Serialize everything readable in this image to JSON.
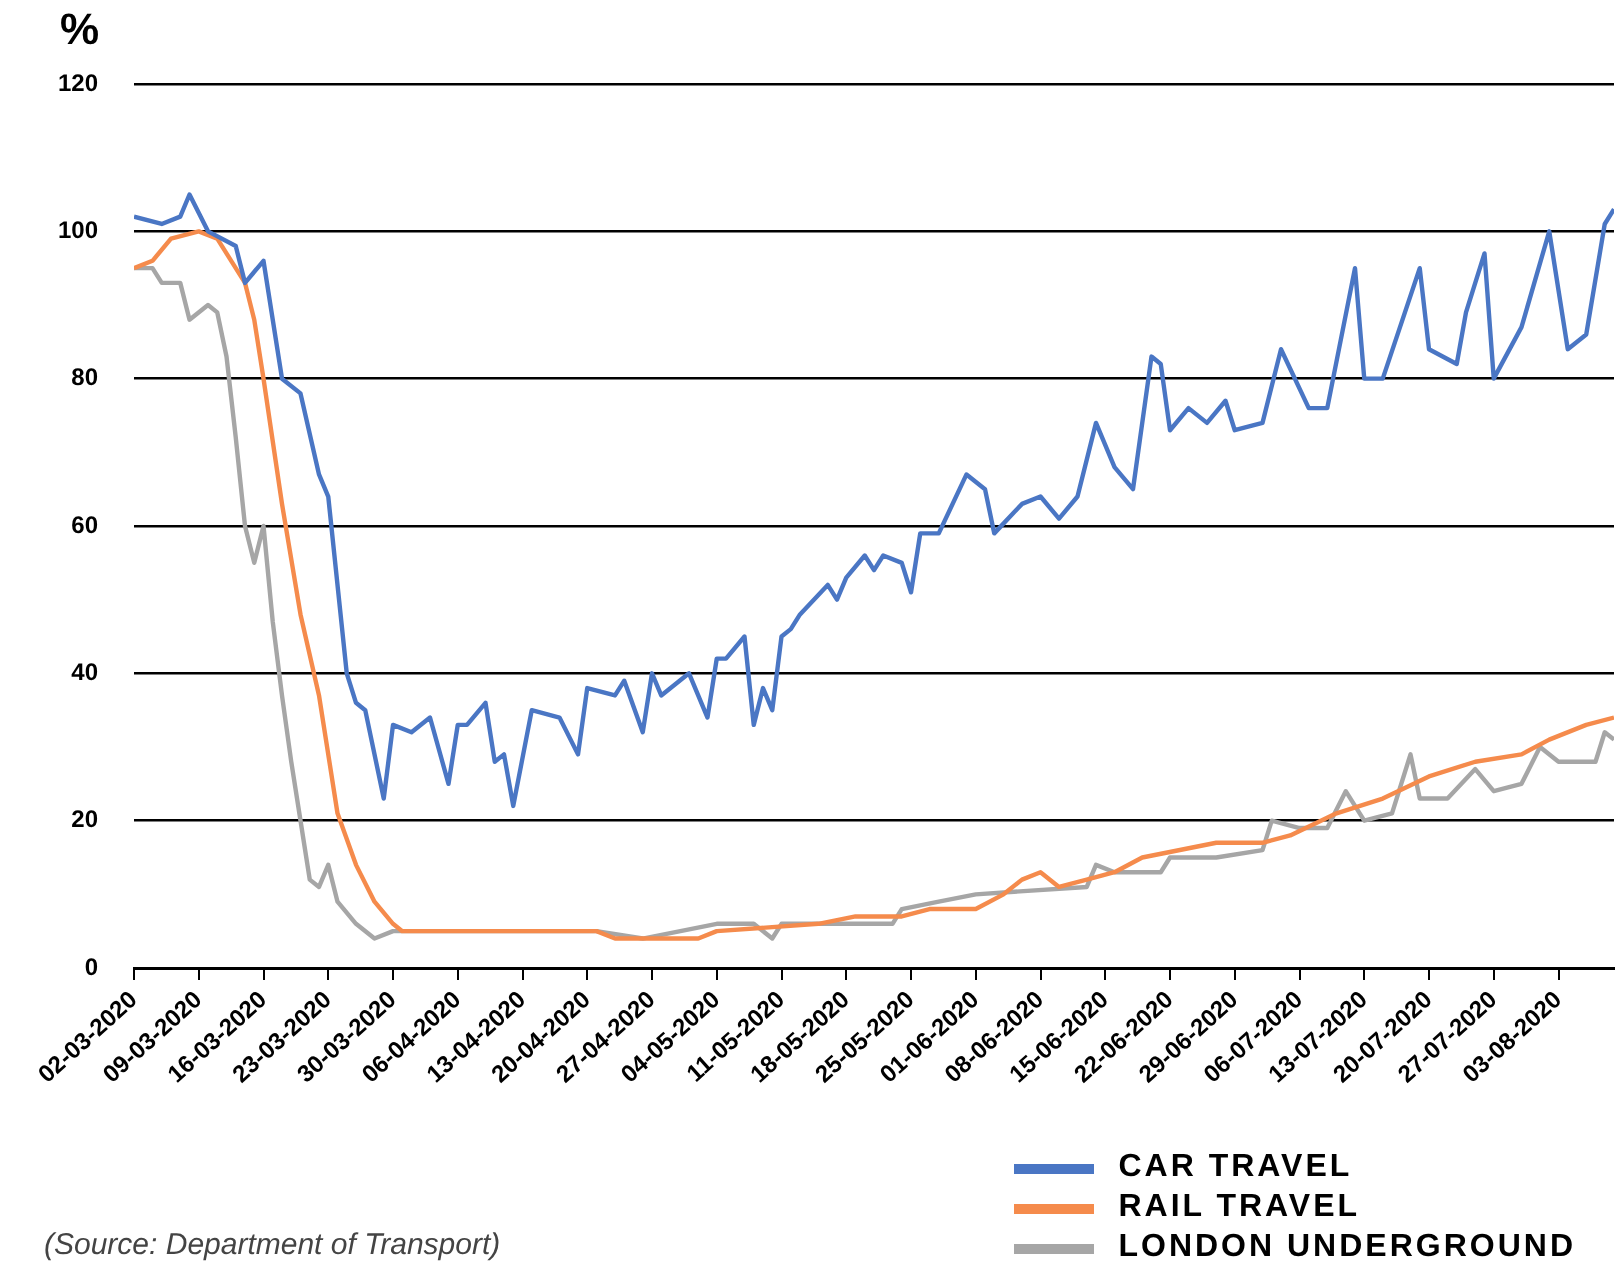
{
  "chart_data": {
    "type": "line",
    "ylabel": "%",
    "xlim": [
      "2020-03-02",
      "2020-08-09"
    ],
    "xticks": [
      {
        "value": "2020-03-02",
        "label": "02-03-2020"
      },
      {
        "value": "2020-03-09",
        "label": "09-03-2020"
      },
      {
        "value": "2020-03-16",
        "label": "16-03-2020"
      },
      {
        "value": "2020-03-23",
        "label": "23-03-2020"
      },
      {
        "value": "2020-03-30",
        "label": "30-03-2020"
      },
      {
        "value": "2020-04-06",
        "label": "06-04-2020"
      },
      {
        "value": "2020-04-13",
        "label": "13-04-2020"
      },
      {
        "value": "2020-04-20",
        "label": "20-04-2020"
      },
      {
        "value": "2020-04-27",
        "label": "27-04-2020"
      },
      {
        "value": "2020-05-04",
        "label": "04-05-2020"
      },
      {
        "value": "2020-05-11",
        "label": "11-05-2020"
      },
      {
        "value": "2020-05-18",
        "label": "18-05-2020"
      },
      {
        "value": "2020-05-25",
        "label": "25-05-2020"
      },
      {
        "value": "2020-06-01",
        "label": "01-06-2020"
      },
      {
        "value": "2020-06-08",
        "label": "08-06-2020"
      },
      {
        "value": "2020-06-15",
        "label": "15-06-2020"
      },
      {
        "value": "2020-06-22",
        "label": "22-06-2020"
      },
      {
        "value": "2020-06-29",
        "label": "29-06-2020"
      },
      {
        "value": "2020-07-06",
        "label": "06-07-2020"
      },
      {
        "value": "2020-07-13",
        "label": "13-07-2020"
      },
      {
        "value": "2020-07-20",
        "label": "20-07-2020"
      },
      {
        "value": "2020-07-27",
        "label": "27-07-2020"
      },
      {
        "value": "2020-08-03",
        "label": "03-08-2020"
      }
    ],
    "ylim": [
      0,
      120
    ],
    "yticks": [
      0,
      20,
      40,
      60,
      80,
      100,
      120
    ],
    "grid": "y",
    "legend": "bottom right",
    "marker": "none",
    "line_style": "solid",
    "annotations": [
      "(Source: Department of Transport)"
    ],
    "series": [
      {
        "name": "CAR TRAVEL",
        "color": "#4a76c4",
        "x": [
          "2020-03-02",
          "2020-03-05",
          "2020-03-07",
          "2020-03-08",
          "2020-03-10",
          "2020-03-13",
          "2020-03-14",
          "2020-03-16",
          "2020-03-18",
          "2020-03-20",
          "2020-03-22",
          "2020-03-23",
          "2020-03-25",
          "2020-03-26",
          "2020-03-27",
          "2020-03-29",
          "2020-03-30",
          "2020-04-01",
          "2020-04-03",
          "2020-04-05",
          "2020-04-06",
          "2020-04-07",
          "2020-04-09",
          "2020-04-10",
          "2020-04-11",
          "2020-04-12",
          "2020-04-14",
          "2020-04-17",
          "2020-04-19",
          "2020-04-20",
          "2020-04-23",
          "2020-04-24",
          "2020-04-26",
          "2020-04-27",
          "2020-04-28",
          "2020-05-01",
          "2020-05-03",
          "2020-05-04",
          "2020-05-05",
          "2020-05-07",
          "2020-05-08",
          "2020-05-09",
          "2020-05-10",
          "2020-05-11",
          "2020-05-12",
          "2020-05-13",
          "2020-05-16",
          "2020-05-17",
          "2020-05-18",
          "2020-05-20",
          "2020-05-21",
          "2020-05-22",
          "2020-05-24",
          "2020-05-25",
          "2020-05-26",
          "2020-05-28",
          "2020-05-31",
          "2020-06-02",
          "2020-06-03",
          "2020-06-06",
          "2020-06-08",
          "2020-06-10",
          "2020-06-12",
          "2020-06-14",
          "2020-06-16",
          "2020-06-18",
          "2020-06-20",
          "2020-06-21",
          "2020-06-22",
          "2020-06-24",
          "2020-06-26",
          "2020-06-28",
          "2020-06-29",
          "2020-07-02",
          "2020-07-04",
          "2020-07-07",
          "2020-07-09",
          "2020-07-12",
          "2020-07-13",
          "2020-07-15",
          "2020-07-19",
          "2020-07-20",
          "2020-07-23",
          "2020-07-24",
          "2020-07-26",
          "2020-07-27",
          "2020-07-30",
          "2020-08-02",
          "2020-08-04",
          "2020-08-06",
          "2020-08-08",
          "2020-08-09"
        ],
        "values": [
          102,
          101,
          102,
          105,
          100,
          98,
          93,
          96,
          80,
          78,
          67,
          64,
          40,
          36,
          35,
          23,
          33,
          32,
          34,
          25,
          33,
          33,
          36,
          28,
          29,
          22,
          35,
          34,
          29,
          38,
          37,
          39,
          32,
          40,
          37,
          40,
          34,
          42,
          42,
          45,
          33,
          38,
          35,
          45,
          46,
          48,
          52,
          50,
          53,
          56,
          54,
          56,
          55,
          51,
          59,
          59,
          67,
          65,
          59,
          63,
          64,
          61,
          64,
          74,
          68,
          65,
          83,
          82,
          73,
          76,
          74,
          77,
          73,
          74,
          84,
          76,
          76,
          95,
          80,
          80,
          95,
          84,
          82,
          89,
          97,
          80,
          87,
          100,
          84,
          86,
          101,
          103
        ]
      },
      {
        "name": "RAIL TRAVEL",
        "color": "#f58b4c",
        "x": [
          "2020-03-02",
          "2020-03-04",
          "2020-03-06",
          "2020-03-09",
          "2020-03-11",
          "2020-03-12",
          "2020-03-14",
          "2020-03-15",
          "2020-03-16",
          "2020-03-18",
          "2020-03-20",
          "2020-03-22",
          "2020-03-24",
          "2020-03-26",
          "2020-03-28",
          "2020-03-30",
          "2020-03-31",
          "2020-04-21",
          "2020-04-23",
          "2020-05-02",
          "2020-05-04",
          "2020-05-15",
          "2020-05-19",
          "2020-05-24",
          "2020-05-27",
          "2020-06-01",
          "2020-06-04",
          "2020-06-06",
          "2020-06-08",
          "2020-06-10",
          "2020-06-13",
          "2020-06-16",
          "2020-06-19",
          "2020-06-27",
          "2020-07-02",
          "2020-07-05",
          "2020-07-10",
          "2020-07-15",
          "2020-07-20",
          "2020-07-25",
          "2020-07-30",
          "2020-08-02",
          "2020-08-06",
          "2020-08-09"
        ],
        "values": [
          95,
          96,
          99,
          100,
          99,
          97,
          93,
          88,
          80,
          63,
          48,
          37,
          21,
          14,
          9,
          6,
          5,
          5,
          4,
          4,
          5,
          6,
          7,
          7,
          8,
          8,
          10,
          12,
          13,
          11,
          12,
          13,
          15,
          17,
          17,
          18,
          21,
          23,
          26,
          28,
          29,
          31,
          33,
          34
        ]
      },
      {
        "name": "LONDON UNDERGROUND",
        "color": "#a6a6a6",
        "x": [
          "2020-03-02",
          "2020-03-04",
          "2020-03-05",
          "2020-03-07",
          "2020-03-08",
          "2020-03-10",
          "2020-03-11",
          "2020-03-12",
          "2020-03-13",
          "2020-03-14",
          "2020-03-15",
          "2020-03-16",
          "2020-03-17",
          "2020-03-18",
          "2020-03-19",
          "2020-03-20",
          "2020-03-21",
          "2020-03-22",
          "2020-03-23",
          "2020-03-24",
          "2020-03-26",
          "2020-03-28",
          "2020-03-30",
          "2020-04-21",
          "2020-04-26",
          "2020-05-04",
          "2020-05-08",
          "2020-05-10",
          "2020-05-11",
          "2020-05-18",
          "2020-05-23",
          "2020-05-24",
          "2020-05-28",
          "2020-06-01",
          "2020-06-13",
          "2020-06-14",
          "2020-06-16",
          "2020-06-21",
          "2020-06-22",
          "2020-06-27",
          "2020-07-02",
          "2020-07-03",
          "2020-07-06",
          "2020-07-09",
          "2020-07-11",
          "2020-07-13",
          "2020-07-16",
          "2020-07-18",
          "2020-07-19",
          "2020-07-22",
          "2020-07-25",
          "2020-07-27",
          "2020-07-30",
          "2020-08-01",
          "2020-08-03",
          "2020-08-07",
          "2020-08-08",
          "2020-08-09"
        ],
        "values": [
          95,
          95,
          93,
          93,
          88,
          90,
          89,
          83,
          72,
          60,
          55,
          60,
          47,
          37,
          28,
          20,
          12,
          11,
          14,
          9,
          6,
          4,
          5,
          5,
          4,
          6,
          6,
          4,
          6,
          6,
          6,
          8,
          9,
          10,
          11,
          14,
          13,
          13,
          15,
          15,
          16,
          20,
          19,
          19,
          24,
          20,
          21,
          29,
          23,
          23,
          27,
          24,
          25,
          30,
          28,
          28,
          32,
          31
        ]
      }
    ]
  }
}
